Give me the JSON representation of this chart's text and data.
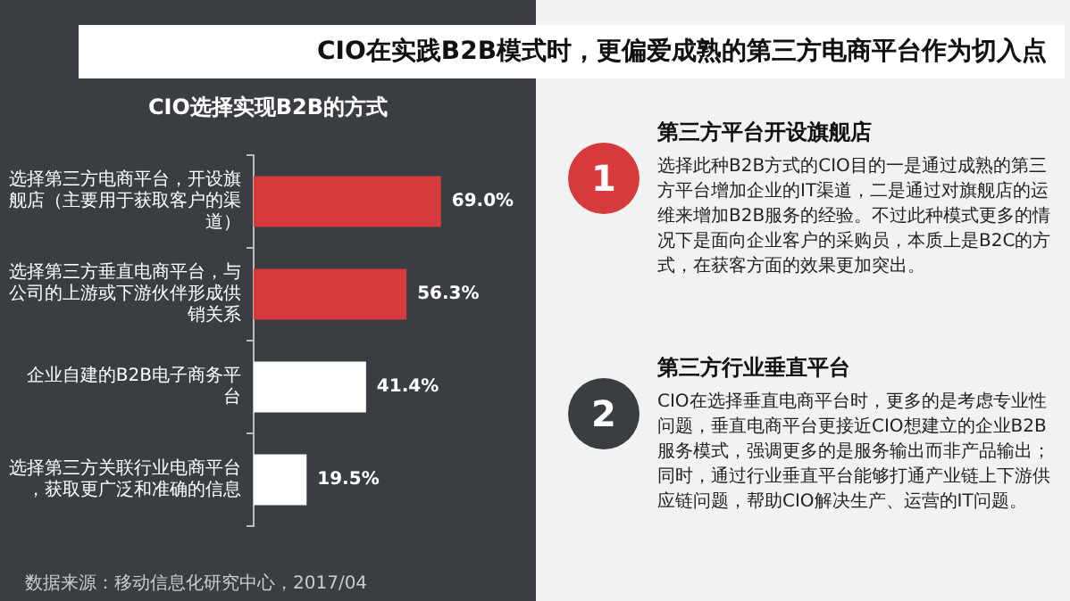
{
  "chart_data": {
    "type": "bar",
    "orientation": "horizontal",
    "title": "CIO在实践B2B模式时，更偏爱成熟的第三方电商平台作为切入点",
    "subtitle": "CIO选择实现B2B的方式",
    "categories": [
      "选择第三方电商平台，开设旗舰店（主要用于获取客户的渠道）",
      "选择第三方垂直电商平台，与公司的上游或下游伙伴形成供销关系",
      "企业自建的B2B电子商务平台",
      "选择第三方关联行业电商平台，获取更广泛和准确的信息"
    ],
    "values": [
      69.0,
      56.3,
      41.4,
      19.5
    ],
    "colors": [
      "#d63a3c",
      "#d63a3c",
      "#ffffff",
      "#ffffff"
    ],
    "value_labels": [
      "69.0%",
      "56.3%",
      "41.4%",
      "19.5%"
    ],
    "annotations": [
      "数据来源：移动信息化研究中心，2017/04",
      "1",
      "第三方平台开设旗舰店",
      "选择此种B2B方式的CIO目的一是通过成熟的第三方平台增加企业的IT渠道，二是通过对旗舰店的运维来增加B2B服务的经验。不过此种模式更多的情况下是面向企业客户的采购员，本质上是B2C的方式，在获客方面的效果更加突出。",
      "2",
      "第三方行业垂直平台",
      "CIO在选择垂直电商平台时，更多的是考虑专业性问题，垂直电商平台更接近CIO想建立的企业B2B服务模式，强调更多的是服务输出而非产品输出；同时，通过行业垂直平台能够打通产业链上下游供应链问题，帮助CIO解决生产、运营的IT问题。"
    ]
  }
}
